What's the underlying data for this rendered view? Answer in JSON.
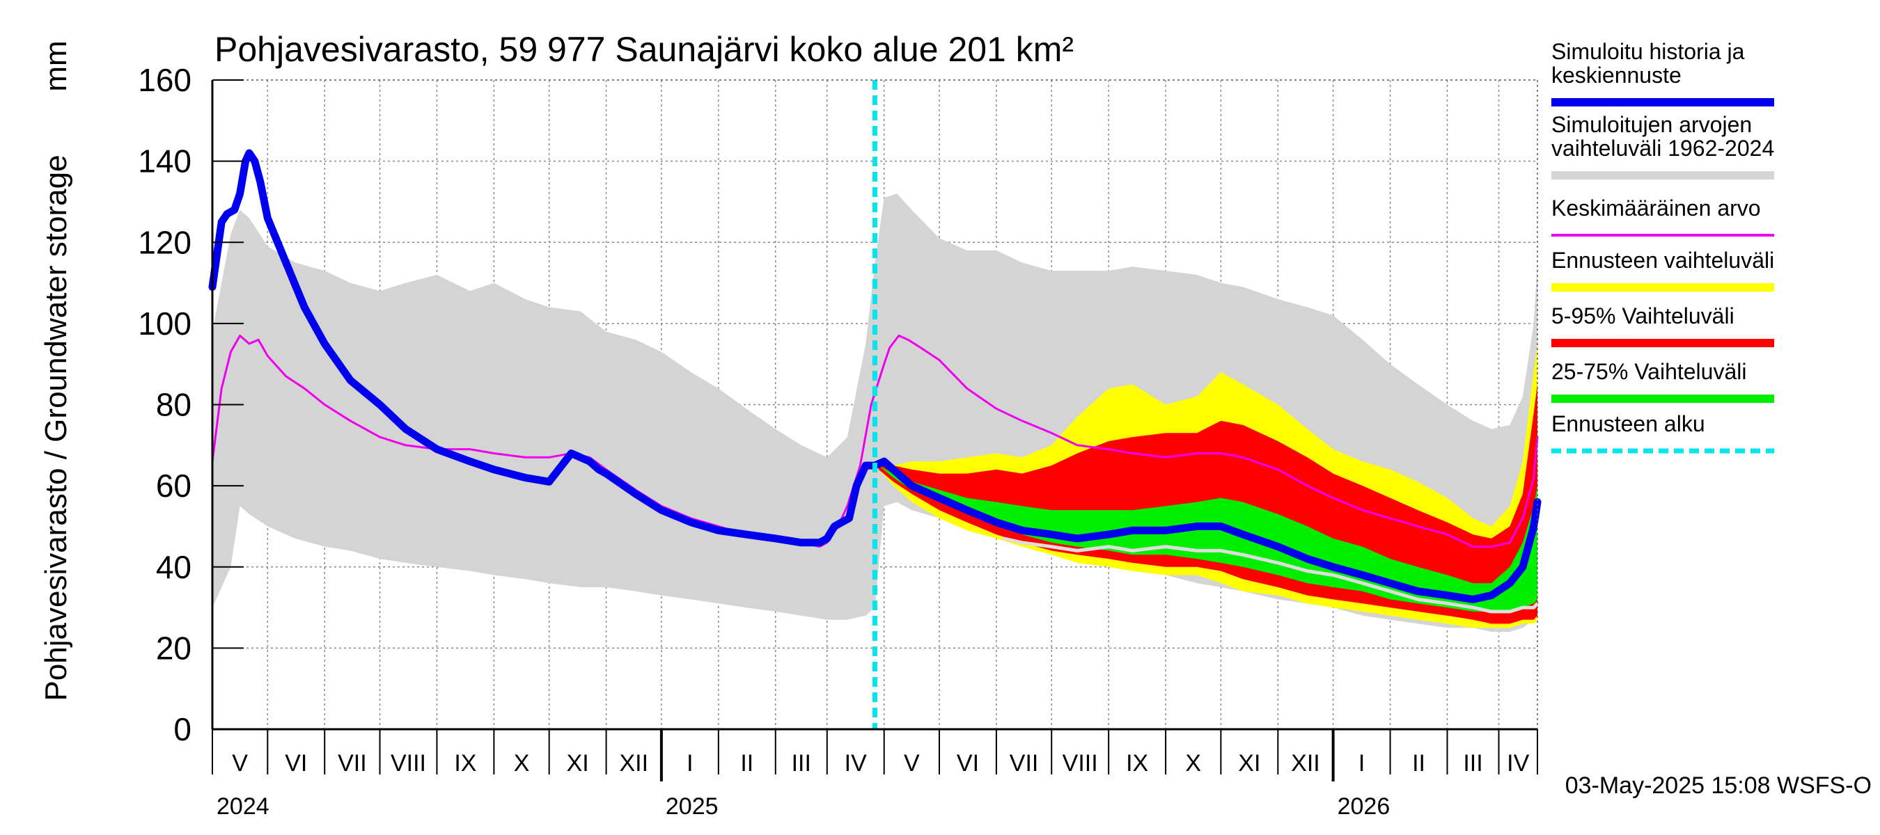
{
  "chart_data": {
    "type": "area",
    "title": "Pohjavesivarasto, 59 977 Saunajärvi koko alue 201 km²",
    "ylabel": "Pohjavesivarasto / Groundwater storage",
    "yunit": "mm",
    "ylim": [
      0,
      160
    ],
    "yticks": [
      0,
      20,
      40,
      60,
      80,
      100,
      120,
      140,
      160
    ],
    "xlim": [
      0,
      720
    ],
    "x_unit": "days since 2024-04-19",
    "grid": true,
    "months": [
      {
        "label": "V",
        "start": 0,
        "end": 30
      },
      {
        "label": "VI",
        "start": 30,
        "end": 61
      },
      {
        "label": "VII",
        "start": 61,
        "end": 91
      },
      {
        "label": "VIII",
        "start": 91,
        "end": 122
      },
      {
        "label": "IX",
        "start": 122,
        "end": 153
      },
      {
        "label": "X",
        "start": 153,
        "end": 183
      },
      {
        "label": "XI",
        "start": 183,
        "end": 214
      },
      {
        "label": "XII",
        "start": 214,
        "end": 244
      },
      {
        "label": "I",
        "start": 244,
        "end": 275
      },
      {
        "label": "II",
        "start": 275,
        "end": 306
      },
      {
        "label": "III",
        "start": 306,
        "end": 334
      },
      {
        "label": "IV",
        "start": 334,
        "end": 365
      },
      {
        "label": "V",
        "start": 365,
        "end": 395
      },
      {
        "label": "VI",
        "start": 395,
        "end": 426
      },
      {
        "label": "VII",
        "start": 426,
        "end": 456
      },
      {
        "label": "VIII",
        "start": 456,
        "end": 487
      },
      {
        "label": "IX",
        "start": 487,
        "end": 518
      },
      {
        "label": "X",
        "start": 518,
        "end": 548
      },
      {
        "label": "XI",
        "start": 548,
        "end": 579
      },
      {
        "label": "XII",
        "start": 579,
        "end": 609
      },
      {
        "label": "I",
        "start": 609,
        "end": 640
      },
      {
        "label": "II",
        "start": 640,
        "end": 671
      },
      {
        "label": "III",
        "start": 671,
        "end": 699
      },
      {
        "label": "IV",
        "start": 699,
        "end": 720
      }
    ],
    "years": [
      {
        "label": "2024",
        "x": 0
      },
      {
        "label": "2025",
        "x": 244
      },
      {
        "label": "2026",
        "x": 609
      }
    ],
    "year_boundaries": [
      244,
      609
    ],
    "forecast_start": 360,
    "series": [
      {
        "name": "Simuloitujen arvojen vaihteluväli 1962-2024",
        "kind": "band",
        "color": "#d4d4d4",
        "x": [
          0,
          10,
          15,
          20,
          30,
          45,
          61,
          75,
          91,
          105,
          122,
          140,
          153,
          170,
          183,
          200,
          214,
          230,
          244,
          260,
          275,
          290,
          306,
          320,
          334,
          345,
          355,
          360,
          365,
          372,
          380,
          395,
          410,
          426,
          440,
          456,
          470,
          487,
          500,
          518,
          535,
          548,
          560,
          579,
          595,
          609,
          625,
          640,
          655,
          671,
          685,
          695,
          705,
          712,
          718,
          720
        ],
        "upper": [
          98,
          122,
          128,
          126,
          119,
          115,
          113,
          110,
          108,
          110,
          112,
          108,
          110,
          106,
          104,
          103,
          98,
          96,
          93,
          88,
          84,
          79,
          74,
          70,
          67,
          72,
          95,
          115,
          131,
          132,
          128,
          121,
          118,
          118,
          115,
          113,
          113,
          113,
          114,
          113,
          112,
          110,
          109,
          106,
          104,
          102,
          96,
          90,
          85,
          80,
          76,
          74,
          75,
          82,
          100,
          115
        ],
        "lower": [
          30,
          40,
          55,
          53,
          50,
          47,
          45,
          44,
          42,
          41,
          40,
          39,
          38,
          37,
          36,
          35,
          35,
          34,
          33,
          32,
          31,
          30,
          29,
          28,
          27,
          27,
          28,
          30,
          55,
          56,
          54,
          52,
          50,
          48,
          46,
          44,
          42,
          40,
          39,
          38,
          36,
          35,
          34,
          32,
          31,
          30,
          28,
          27,
          26,
          25,
          25,
          24,
          24,
          25,
          27,
          28
        ]
      },
      {
        "name": "Ennusteen vaihteluväli",
        "kind": "band",
        "color": "#ffff00",
        "x": [
          362,
          370,
          380,
          395,
          410,
          426,
          440,
          456,
          470,
          487,
          500,
          518,
          535,
          548,
          560,
          579,
          595,
          609,
          625,
          640,
          655,
          671,
          685,
          695,
          705,
          712,
          718,
          720
        ],
        "upper": [
          66,
          65,
          66,
          66,
          67,
          68,
          67,
          70,
          77,
          84,
          85,
          80,
          82,
          88,
          85,
          80,
          74,
          69,
          66,
          64,
          61,
          57,
          52,
          50,
          55,
          66,
          88,
          95
        ],
        "lower": [
          64,
          60,
          56,
          52,
          49,
          47,
          45,
          43,
          41,
          40,
          39,
          38,
          38,
          36,
          34,
          33,
          31,
          30,
          29,
          28,
          27,
          26,
          25,
          25,
          25,
          26,
          26,
          27
        ]
      },
      {
        "name": "5-95% Vaihteluväli",
        "kind": "band",
        "color": "#ff0000",
        "x": [
          362,
          370,
          380,
          395,
          410,
          426,
          440,
          456,
          470,
          487,
          500,
          518,
          535,
          548,
          560,
          579,
          595,
          609,
          625,
          640,
          655,
          671,
          685,
          695,
          705,
          712,
          718,
          720
        ],
        "upper": [
          66,
          65,
          64,
          63,
          63,
          64,
          63,
          65,
          68,
          71,
          72,
          73,
          73,
          76,
          75,
          71,
          67,
          63,
          60,
          57,
          54,
          51,
          48,
          47,
          50,
          58,
          78,
          85
        ],
        "lower": [
          64,
          61,
          58,
          54,
          51,
          48,
          46,
          44,
          43,
          42,
          41,
          40,
          40,
          39,
          37,
          35,
          33,
          32,
          31,
          30,
          29,
          28,
          27,
          26,
          26,
          27,
          27,
          28
        ]
      },
      {
        "name": "25-75% Vaihteluväli",
        "kind": "band",
        "color": "#00ee00",
        "x": [
          362,
          370,
          380,
          395,
          410,
          426,
          440,
          456,
          470,
          487,
          500,
          518,
          535,
          548,
          560,
          579,
          595,
          609,
          625,
          640,
          655,
          671,
          685,
          695,
          705,
          712,
          718,
          720
        ],
        "upper": [
          65,
          63,
          61,
          59,
          57,
          56,
          55,
          54,
          54,
          54,
          54,
          55,
          56,
          57,
          56,
          53,
          50,
          47,
          45,
          42,
          40,
          38,
          36,
          36,
          40,
          46,
          55,
          60
        ],
        "lower": [
          65,
          62,
          59,
          56,
          53,
          51,
          48,
          46,
          45,
          44,
          43,
          43,
          42,
          41,
          40,
          38,
          36,
          35,
          34,
          32,
          31,
          30,
          29,
          29,
          29,
          30,
          31,
          32
        ]
      },
      {
        "name": "Keskimääräinen arvo",
        "kind": "line",
        "color": "#ee00ee",
        "width": 3,
        "x": [
          0,
          5,
          10,
          15,
          20,
          25,
          30,
          40,
          50,
          61,
          75,
          91,
          105,
          122,
          140,
          153,
          170,
          183,
          195,
          205,
          214,
          230,
          244,
          260,
          275,
          290,
          306,
          320,
          330,
          334,
          340,
          345,
          352,
          358,
          365,
          368,
          373,
          378,
          385,
          395,
          410,
          426,
          440,
          456,
          470,
          487,
          500,
          518,
          535,
          548,
          560,
          579,
          595,
          609,
          625,
          640,
          655,
          671,
          685,
          695,
          705,
          712,
          718,
          720
        ],
        "values": [
          66,
          84,
          93,
          97,
          95,
          96,
          92,
          87,
          84,
          80,
          76,
          72,
          70,
          69,
          69,
          68,
          67,
          67,
          68,
          67,
          64,
          59,
          55,
          52,
          50,
          48,
          47,
          46,
          45,
          46,
          50,
          55,
          65,
          80,
          90,
          94,
          97,
          96,
          94,
          91,
          84,
          79,
          76,
          73,
          70,
          69,
          68,
          67,
          68,
          68,
          67,
          64,
          60,
          57,
          54,
          52,
          50,
          48,
          45,
          45,
          46,
          52,
          62,
          72
        ]
      },
      {
        "name": "Simuloitu historia ja keskiennuste",
        "kind": "line",
        "color": "#0000ee",
        "width": 11,
        "x": [
          0,
          5,
          8,
          12,
          15,
          18,
          20,
          23,
          26,
          30,
          40,
          50,
          61,
          75,
          91,
          105,
          122,
          140,
          153,
          170,
          183,
          195,
          200,
          205,
          210,
          214,
          230,
          244,
          260,
          275,
          290,
          306,
          320,
          330,
          334,
          338,
          342,
          346,
          350,
          355,
          360,
          365,
          370,
          380,
          395,
          410,
          426,
          440,
          456,
          470,
          487,
          500,
          518,
          535,
          548,
          560,
          579,
          595,
          609,
          625,
          640,
          655,
          671,
          685,
          695,
          705,
          712,
          718,
          720
        ],
        "values": [
          109,
          125,
          127,
          128,
          132,
          140,
          142,
          140,
          135,
          126,
          115,
          104,
          95,
          86,
          80,
          74,
          69,
          66,
          64,
          62,
          61,
          68,
          67,
          66,
          64,
          63,
          58,
          54,
          51,
          49,
          48,
          47,
          46,
          46,
          47,
          50,
          51,
          52,
          60,
          65,
          65,
          66,
          64,
          60,
          57,
          54,
          51,
          49,
          48,
          47,
          48,
          49,
          49,
          50,
          50,
          48,
          45,
          42,
          40,
          38,
          36,
          34,
          33,
          32,
          33,
          36,
          40,
          50,
          56
        ]
      },
      {
        "name": "Simuloitujen vertailu (harmaa)",
        "kind": "line",
        "color": "#dddddd",
        "width": 5,
        "in_legend": false,
        "x": [
          430,
          440,
          456,
          470,
          487,
          500,
          518,
          535,
          548,
          560,
          579,
          595,
          609,
          625,
          640,
          655,
          671,
          685,
          695,
          705,
          712,
          718,
          720
        ],
        "values": [
          47,
          46,
          45,
          44,
          45,
          44,
          45,
          44,
          44,
          43,
          41,
          39,
          38,
          36,
          34,
          32,
          31,
          30,
          29,
          29,
          30,
          30,
          31
        ]
      },
      {
        "name": "Ennusteen alku",
        "kind": "vline",
        "color": "#00e5ee",
        "width": 7,
        "dash": "14,8",
        "x": 360
      }
    ],
    "legend": [
      {
        "label": "Simuloitu historia ja keskiennuste",
        "color": "#0000ee",
        "width": 12
      },
      {
        "label": "Simuloitujen arvojen vaihteluväli 1962-2024",
        "color": "#d4d4d4",
        "width": 12
      },
      {
        "label": "Keskimääräinen arvo",
        "color": "#ee00ee",
        "width": 4
      },
      {
        "label": "Ennusteen vaihteluväli",
        "color": "#ffff00",
        "width": 12
      },
      {
        "label": "5-95% Vaihteluväli",
        "color": "#ff0000",
        "width": 12
      },
      {
        "label": "25-75% Vaihteluväli",
        "color": "#00ee00",
        "width": 12
      },
      {
        "label": "Ennusteen alku",
        "color": "#00e5ee",
        "width": 7,
        "dash": true
      }
    ],
    "legend_position": "right",
    "timestamp": "03-May-2025 15:08 WSFS-O"
  }
}
